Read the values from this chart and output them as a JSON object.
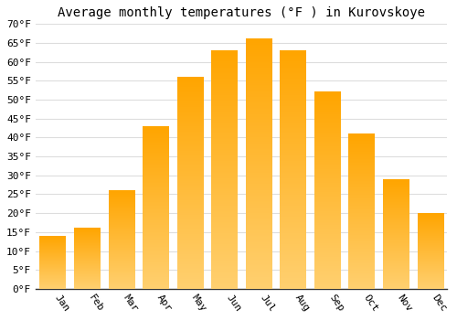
{
  "title": "Average monthly temperatures (°F ) in Kurovskoye",
  "months": [
    "Jan",
    "Feb",
    "Mar",
    "Apr",
    "May",
    "Jun",
    "Jul",
    "Aug",
    "Sep",
    "Oct",
    "Nov",
    "Dec"
  ],
  "values": [
    14,
    16,
    26,
    43,
    56,
    63,
    66,
    63,
    52,
    41,
    29,
    20
  ],
  "bar_color": "#FFA500",
  "bar_color_light": "#FFD070",
  "ylim": [
    0,
    70
  ],
  "yticks": [
    0,
    5,
    10,
    15,
    20,
    25,
    30,
    35,
    40,
    45,
    50,
    55,
    60,
    65,
    70
  ],
  "ylabel_suffix": "°F",
  "background_color": "#ffffff",
  "grid_color": "#dddddd",
  "title_fontsize": 10,
  "tick_fontsize": 8,
  "font_family": "monospace"
}
